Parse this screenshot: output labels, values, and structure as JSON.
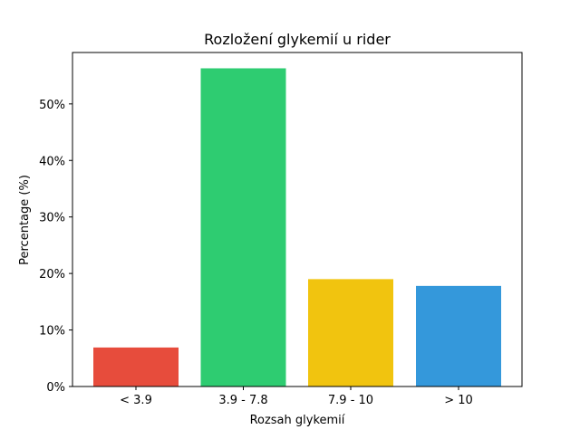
{
  "chart_data": {
    "type": "bar",
    "title": "Rozložení glykemií u  rider",
    "xlabel": "Rozsah glykemií",
    "ylabel": "Percentage (%)",
    "categories": [
      "< 3.9",
      "3.9 - 7.8",
      "7.9 - 10",
      "> 10"
    ],
    "values": [
      6.9,
      56.3,
      19.0,
      17.8
    ],
    "colors": [
      "#e74c3c",
      "#2ecc71",
      "#f1c40f",
      "#3498db"
    ],
    "ylim": [
      0,
      59.1
    ],
    "yticks": [
      0,
      10,
      20,
      30,
      40,
      50
    ],
    "ytick_labels": [
      "0%",
      "10%",
      "20%",
      "30%",
      "40%",
      "50%"
    ],
    "grid": false,
    "legend": "none"
  }
}
